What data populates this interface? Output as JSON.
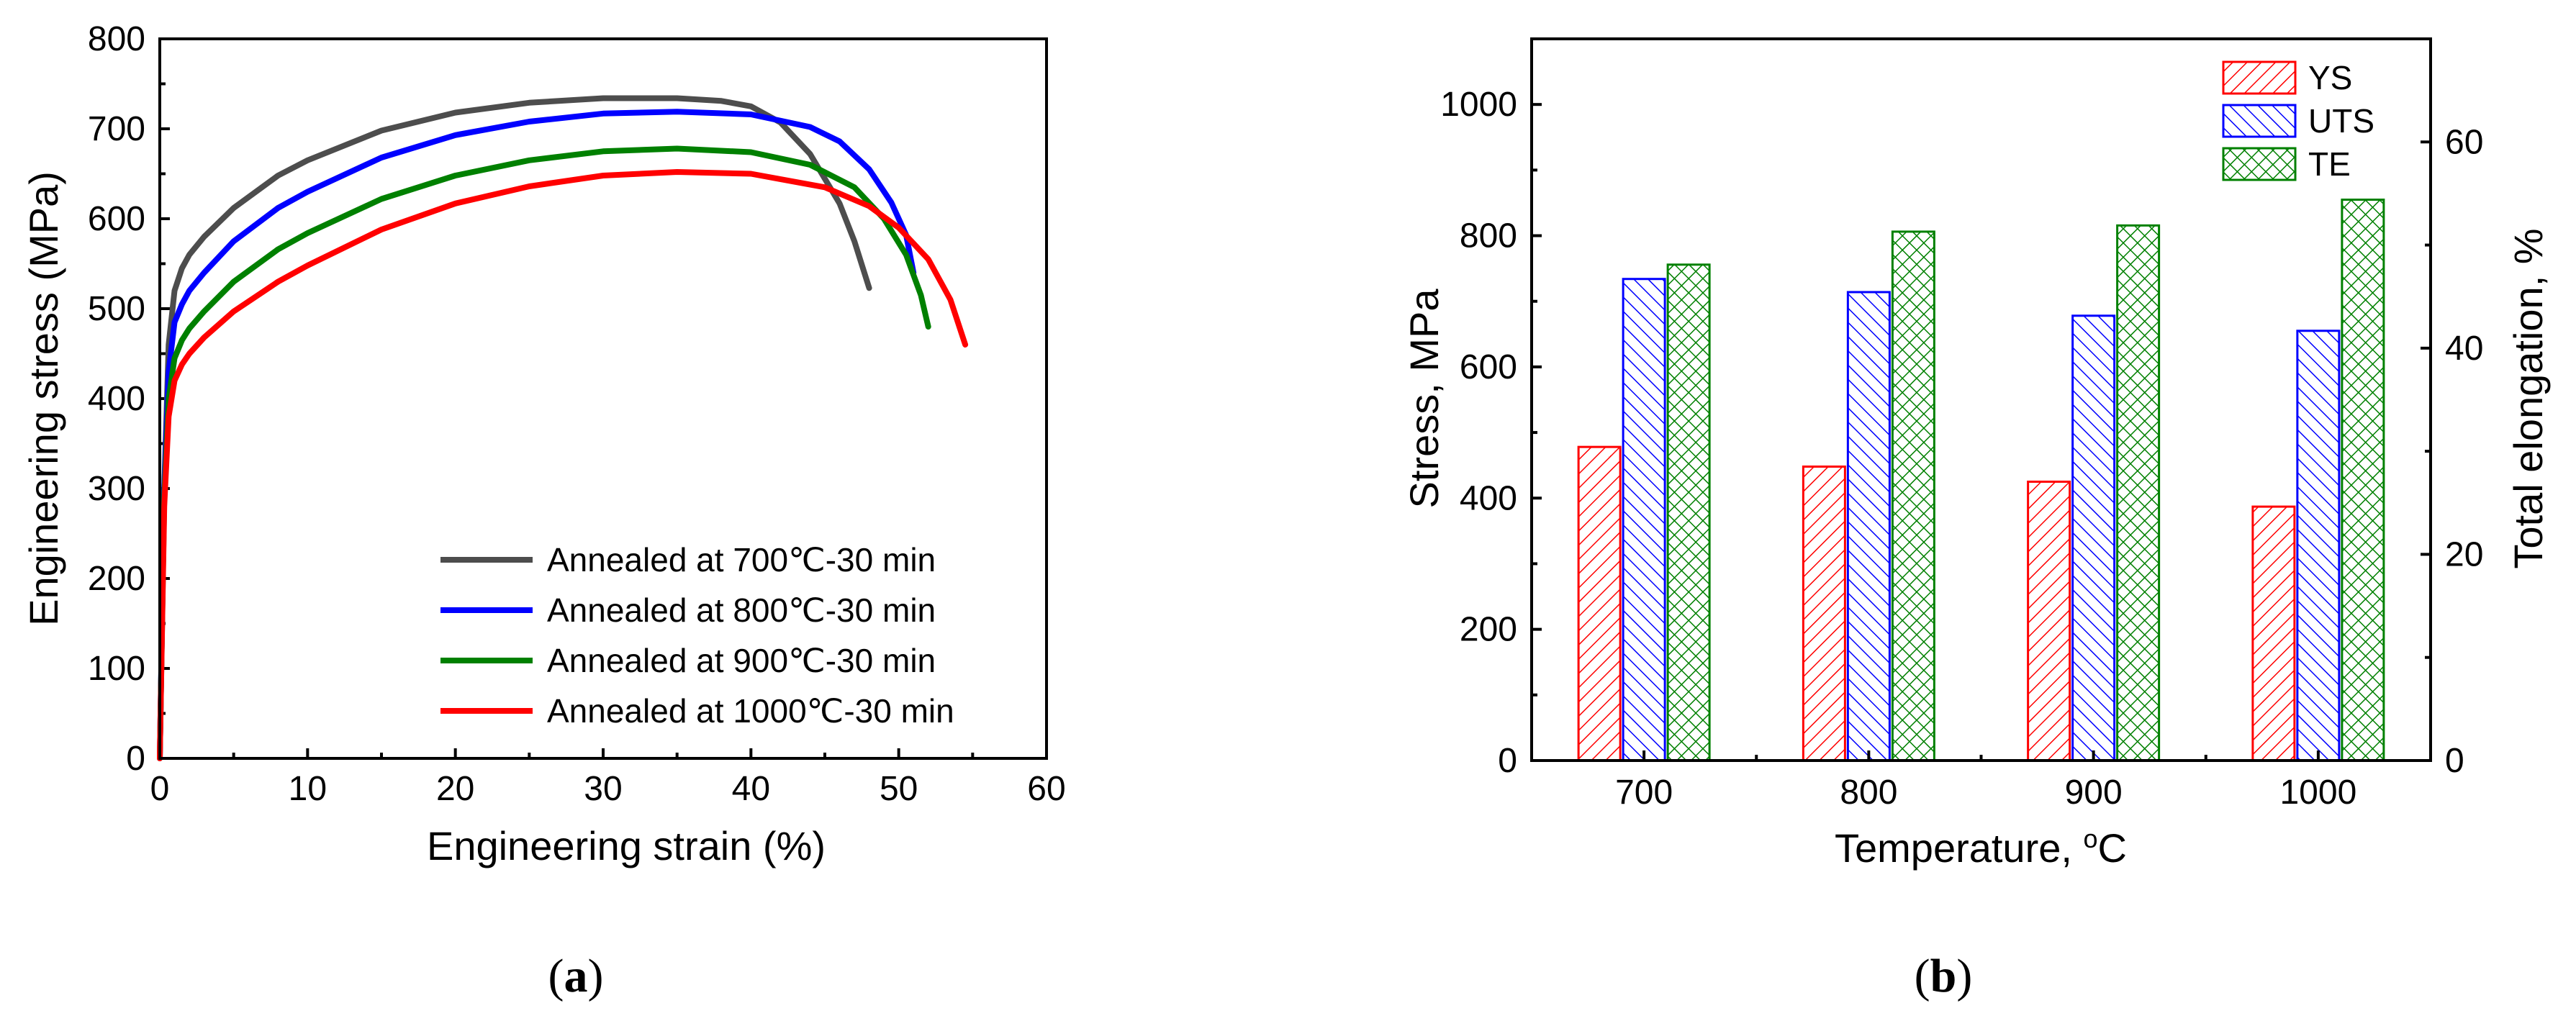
{
  "panels": {
    "a": {
      "open": "(",
      "letter": "a",
      "close": ")"
    },
    "b": {
      "open": "(",
      "letter": "b",
      "close": ")"
    }
  },
  "chart_data": [
    {
      "id": "a",
      "type": "line",
      "xlabel": "Engineering strain (%)",
      "ylabel": "Engineering stress (MPa)",
      "xlim": [
        0,
        60
      ],
      "ylim": [
        0,
        800
      ],
      "xticks": [
        0,
        10,
        20,
        30,
        40,
        50,
        60
      ],
      "yticks": [
        0,
        100,
        200,
        300,
        400,
        500,
        600,
        700,
        800
      ],
      "legend_position": "bottom-right",
      "series": [
        {
          "name": "Annealed at  700℃-30 min",
          "color": "#4d4d4d",
          "x": [
            0,
            0.3,
            0.6,
            1.0,
            1.5,
            2,
            3,
            5,
            8,
            10,
            15,
            20,
            25,
            30,
            35,
            38,
            40,
            42,
            44,
            46,
            47,
            48
          ],
          "y": [
            0,
            300,
            460,
            520,
            545,
            560,
            580,
            612,
            648,
            665,
            698,
            718,
            729,
            734,
            734,
            731,
            725,
            707,
            672,
            617,
            575,
            523
          ]
        },
        {
          "name": "Annealed at  800℃-30 min",
          "color": "#0000ff",
          "x": [
            0,
            0.3,
            0.6,
            1.0,
            1.5,
            2,
            3,
            5,
            8,
            10,
            15,
            20,
            25,
            30,
            35,
            40,
            44,
            46,
            48,
            49.5,
            50.5,
            51
          ],
          "y": [
            0,
            300,
            430,
            485,
            505,
            520,
            540,
            575,
            612,
            630,
            668,
            693,
            708,
            717,
            719,
            716,
            702,
            686,
            655,
            618,
            582,
            540
          ]
        },
        {
          "name": "Annealed at  900℃-30 min",
          "color": "#008000",
          "x": [
            0,
            0.3,
            0.6,
            1.0,
            1.5,
            2,
            3,
            5,
            8,
            10,
            15,
            20,
            25,
            30,
            35,
            40,
            44,
            47,
            49,
            50.5,
            51.5,
            52
          ],
          "y": [
            0,
            290,
            400,
            445,
            465,
            478,
            497,
            530,
            566,
            584,
            622,
            648,
            665,
            675,
            678,
            674,
            660,
            635,
            600,
            560,
            515,
            480
          ]
        },
        {
          "name": "Annealed at 1000℃-30 min",
          "color": "#ff0000",
          "x": [
            0,
            0.3,
            0.6,
            1.0,
            1.5,
            2,
            3,
            5,
            8,
            10,
            15,
            20,
            25,
            30,
            35,
            40,
            45,
            48,
            50,
            52,
            53.5,
            54.5
          ],
          "y": [
            0,
            280,
            380,
            420,
            438,
            450,
            468,
            497,
            530,
            548,
            588,
            617,
            636,
            648,
            652,
            650,
            635,
            614,
            590,
            555,
            510,
            460
          ]
        }
      ]
    },
    {
      "id": "b",
      "type": "bar",
      "xlabel": "Temperature, ",
      "xlabel_sup": "o",
      "xlabel_end": "C",
      "ylabel": "Stress, MPa",
      "y2label": "Total elongation, %",
      "categories": [
        "700",
        "800",
        "900",
        "1000"
      ],
      "ylim": [
        0,
        1100
      ],
      "yticks": [
        0,
        200,
        400,
        600,
        800,
        1000
      ],
      "y2lim": [
        0,
        70
      ],
      "y2ticks": [
        0,
        20,
        40,
        60
      ],
      "legend_position": "top-right",
      "series": [
        {
          "name": "YS",
          "axis": "left",
          "color": "#ff0000",
          "pattern": "forward-hatch",
          "values": [
            478,
            448,
            425,
            387
          ]
        },
        {
          "name": "UTS",
          "axis": "left",
          "color": "#0000ff",
          "pattern": "back-hatch",
          "values": [
            734,
            714,
            678,
            655
          ]
        },
        {
          "name": "TE",
          "axis": "right",
          "color": "#008000",
          "pattern": "crosshatch",
          "values": [
            48.1,
            51.3,
            51.9,
            54.4
          ]
        }
      ]
    }
  ]
}
